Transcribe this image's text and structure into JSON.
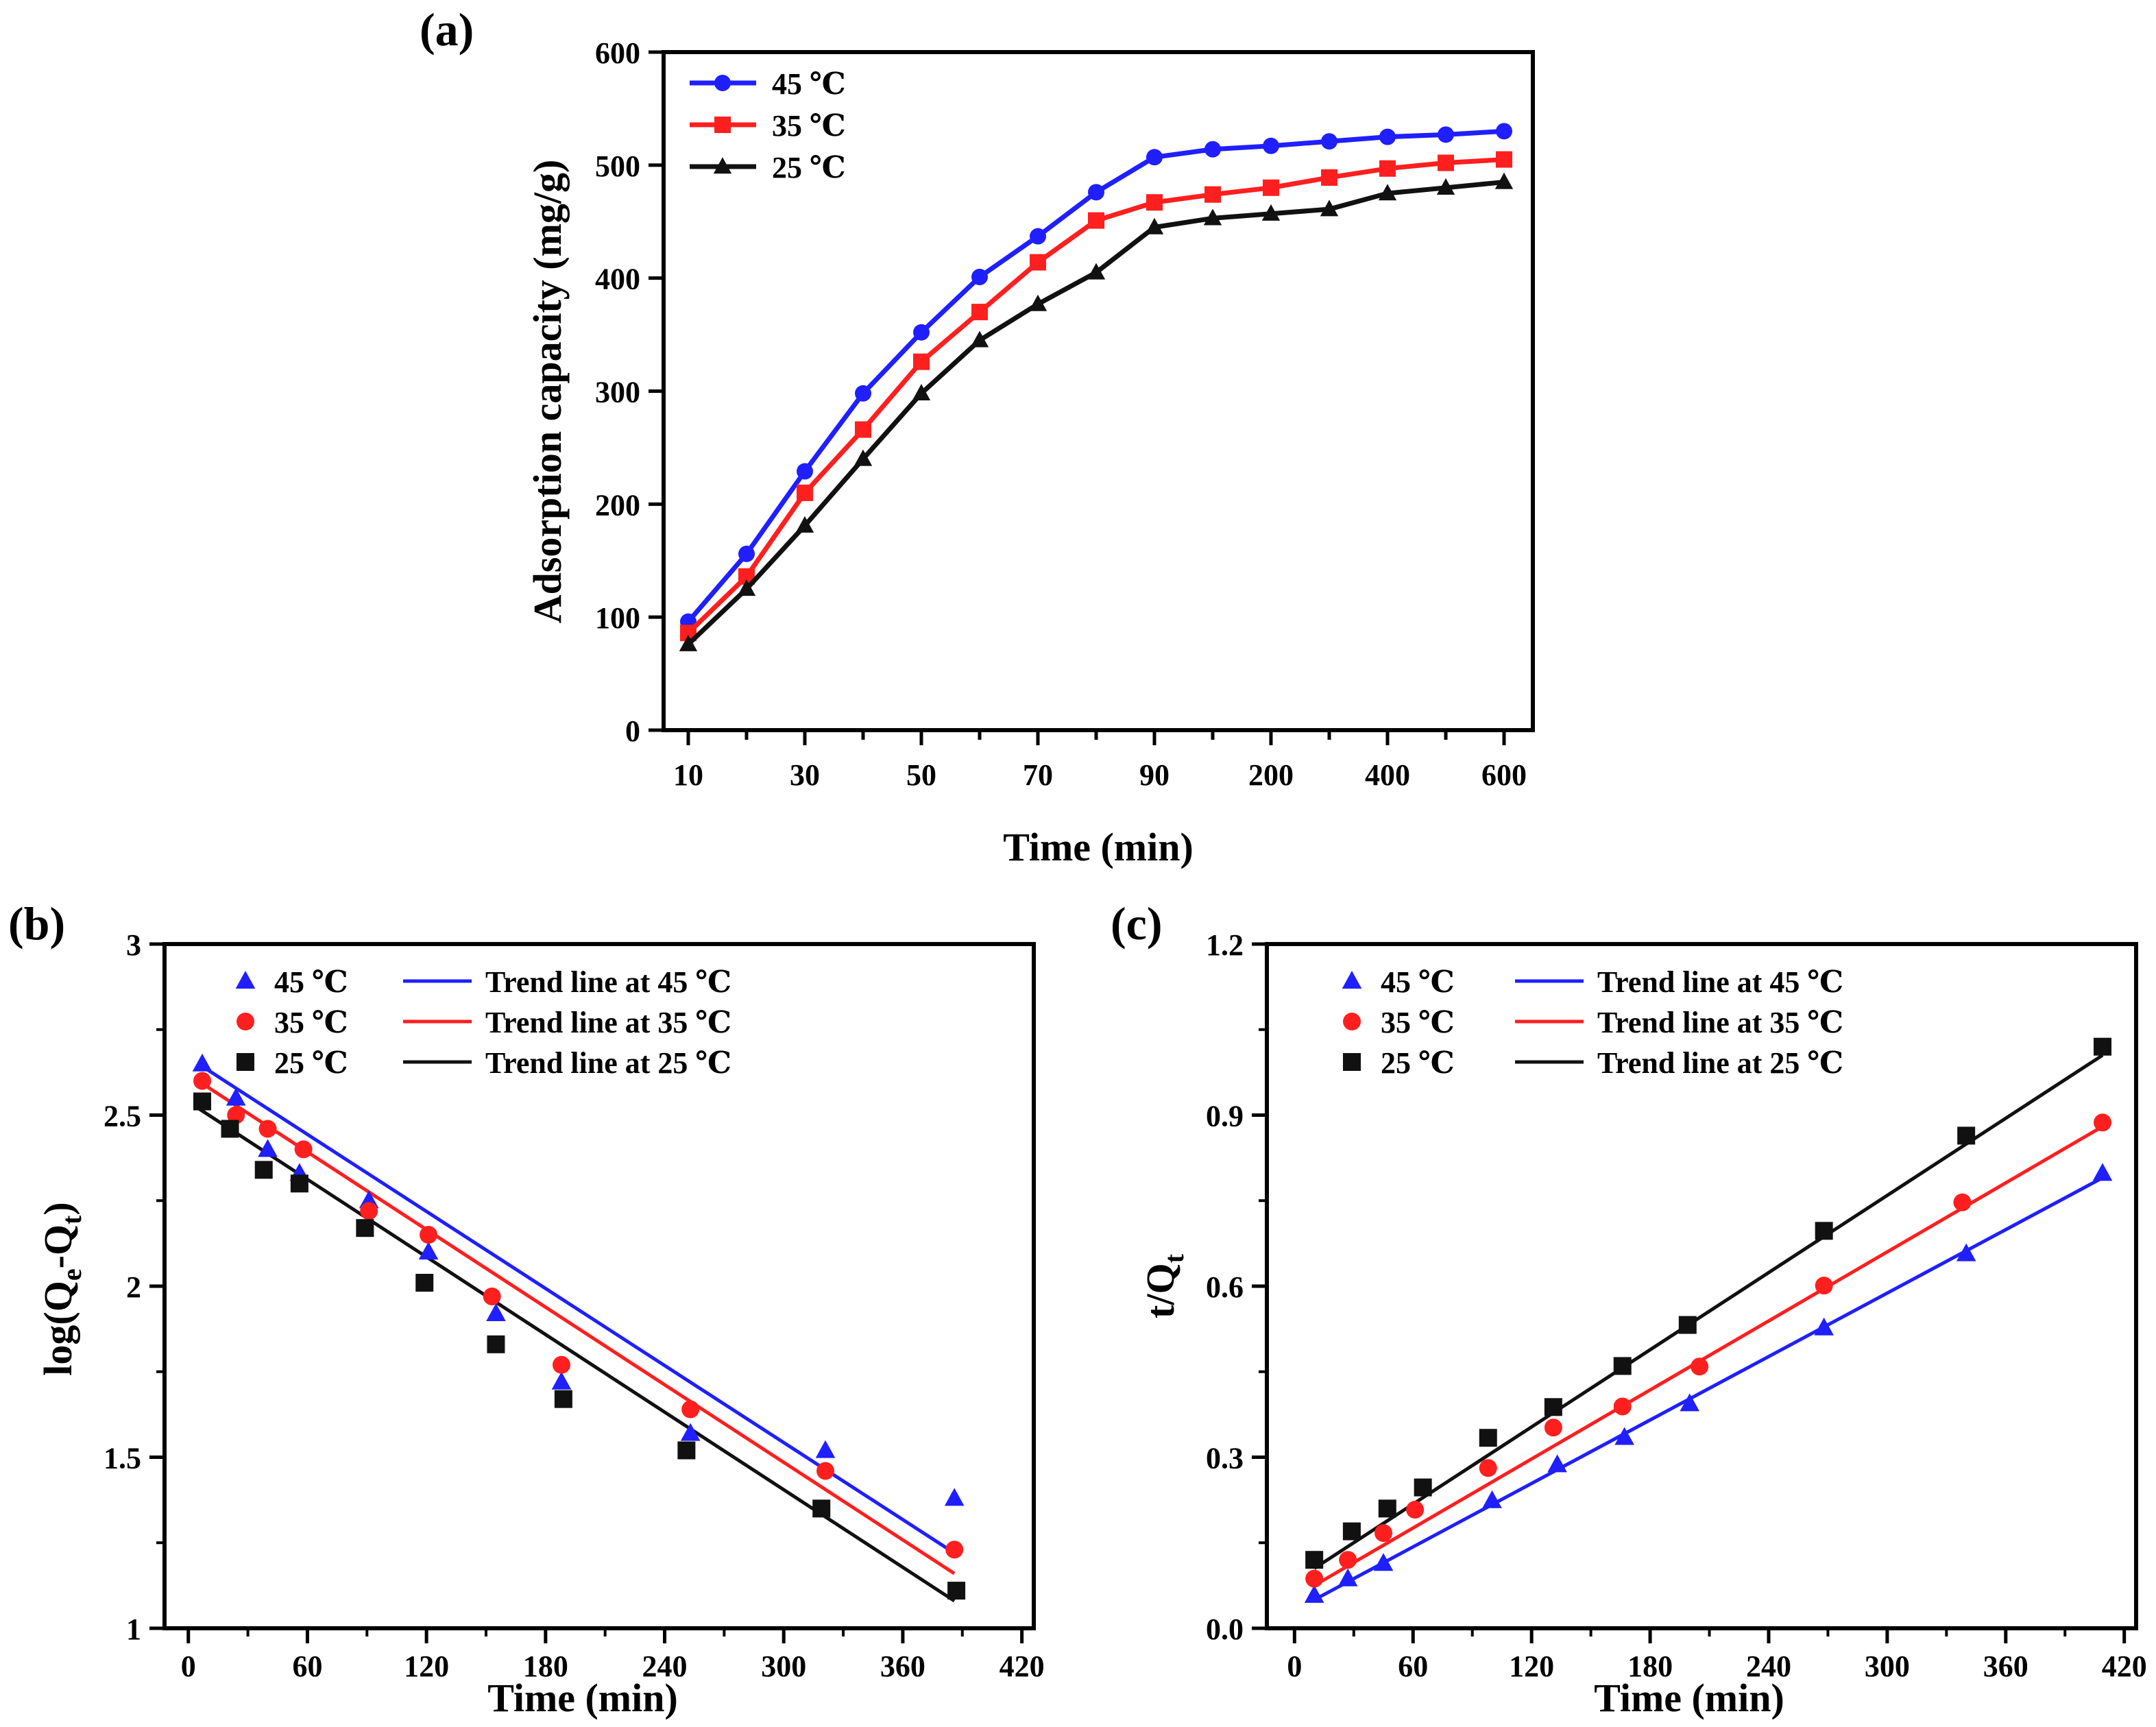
{
  "chart_data": [
    {
      "panel_label": "(a)",
      "type": "line",
      "xlabel": "Time (min)",
      "ylabel": "Adsorption capacity (mg/g)",
      "x_scale": "categorical",
      "categories": [
        "10",
        "20",
        "30",
        "40",
        "50",
        "60",
        "70",
        "80",
        "90",
        "100",
        "200",
        "300",
        "400",
        "500",
        "600"
      ],
      "xtick_labels": [
        "10",
        "30",
        "50",
        "70",
        "90",
        "200",
        "400",
        "600"
      ],
      "ylim": [
        0,
        600
      ],
      "yticks": [
        "0",
        "100",
        "200",
        "300",
        "400",
        "500",
        "600"
      ],
      "legend_position": "top-left",
      "series": [
        {
          "name": "45 ℃",
          "color": "#1f1fff",
          "marker": "circle",
          "values": [
            96,
            156,
            229,
            298,
            352,
            401,
            437,
            476,
            507,
            514,
            517,
            521,
            525,
            527,
            530
          ]
        },
        {
          "name": "35 ℃",
          "color": "#ff1f1f",
          "marker": "square",
          "values": [
            86,
            136,
            210,
            266,
            326,
            370,
            414,
            451,
            467,
            474,
            480,
            489,
            497,
            502,
            505
          ]
        },
        {
          "name": "25 ℃",
          "color": "#111111",
          "marker": "triangle",
          "values": [
            76,
            125,
            181,
            240,
            298,
            345,
            377,
            405,
            445,
            453,
            457,
            461,
            475,
            480,
            485
          ]
        }
      ]
    },
    {
      "panel_label": "(b)",
      "type": "scatter",
      "xlabel": "Time (min)",
      "ylabel_main": "log(Q",
      "ylabel_sub1": "e",
      "ylabel_mid": "-Q",
      "ylabel_sub2": "t",
      "ylabel_end": ")",
      "xlim": [
        -12,
        426
      ],
      "ylim": [
        1,
        3
      ],
      "xticks": [
        "0",
        "60",
        "120",
        "180",
        "240",
        "300",
        "360",
        "420"
      ],
      "yticks": [
        "1",
        "1.5",
        "2",
        "2.5",
        "3"
      ],
      "legend_position": "top",
      "series": [
        {
          "name": "45 ℃",
          "color": "#1f1fff",
          "marker": "triangle",
          "x": [
            7,
            24,
            40,
            56,
            91,
            121,
            155,
            188,
            253,
            321,
            386
          ],
          "y": [
            2.65,
            2.55,
            2.4,
            2.33,
            2.25,
            2.1,
            1.92,
            1.72,
            1.57,
            1.52,
            1.38
          ]
        },
        {
          "name": "35 ℃",
          "color": "#ff1f1f",
          "marker": "circle",
          "x": [
            7,
            24,
            40,
            58,
            91,
            121,
            153,
            188,
            253,
            321,
            386
          ],
          "y": [
            2.6,
            2.5,
            2.46,
            2.4,
            2.22,
            2.15,
            1.97,
            1.77,
            1.64,
            1.46,
            1.23
          ]
        },
        {
          "name": "25 ℃",
          "color": "#111111",
          "marker": "square",
          "x": [
            7,
            21,
            38,
            56,
            89,
            119,
            155,
            189,
            251,
            319,
            387
          ],
          "y": [
            2.54,
            2.46,
            2.34,
            2.3,
            2.17,
            2.01,
            1.83,
            1.67,
            1.52,
            1.35,
            1.11
          ]
        }
      ],
      "trend_lines": [
        {
          "name": "Trend line at 45 ℃",
          "color": "#1f1fff",
          "x": [
            5,
            386
          ],
          "y": [
            2.65,
            1.22
          ]
        },
        {
          "name": "Trend line at 35 ℃",
          "color": "#ff1f1f",
          "x": [
            5,
            386
          ],
          "y": [
            2.6,
            1.16
          ]
        },
        {
          "name": "Trend line at 25 ℃",
          "color": "#111111",
          "x": [
            5,
            386
          ],
          "y": [
            2.52,
            1.08
          ]
        }
      ]
    },
    {
      "panel_label": "(c)",
      "type": "scatter",
      "xlabel": "Time (min)",
      "ylabel_main": "t/Q",
      "ylabel_sub": "t",
      "xlim": [
        -14,
        426
      ],
      "ylim": [
        0,
        1.2
      ],
      "xticks": [
        "0",
        "60",
        "120",
        "180",
        "240",
        "300",
        "360",
        "420"
      ],
      "yticks": [
        "0.0",
        "0.3",
        "0.6",
        "0.9",
        "1.2"
      ],
      "legend_position": "top",
      "series": [
        {
          "name": "45 ℃",
          "color": "#1f1fff",
          "marker": "triangle",
          "x": [
            10,
            27,
            45,
            100,
            133,
            167,
            200,
            268,
            340,
            409
          ],
          "y": [
            0.058,
            0.087,
            0.114,
            0.224,
            0.287,
            0.335,
            0.394,
            0.527,
            0.657,
            0.798
          ]
        },
        {
          "name": "35 ℃",
          "color": "#ff1f1f",
          "marker": "circle",
          "x": [
            10,
            27,
            45,
            61,
            98,
            131,
            166,
            205,
            268,
            338,
            409
          ],
          "y": [
            0.087,
            0.12,
            0.167,
            0.208,
            0.281,
            0.352,
            0.389,
            0.459,
            0.601,
            0.747,
            0.887
          ]
        },
        {
          "name": "25 ℃",
          "color": "#111111",
          "marker": "square",
          "x": [
            10,
            29,
            47,
            65,
            98,
            131,
            166,
            199,
            268,
            340,
            409
          ],
          "y": [
            0.12,
            0.17,
            0.21,
            0.247,
            0.334,
            0.388,
            0.46,
            0.532,
            0.697,
            0.864,
            1.02
          ]
        }
      ],
      "trend_lines": [
        {
          "name": "Trend line at 45 ℃",
          "color": "#1f1fff",
          "x": [
            10,
            409
          ],
          "y": [
            0.05,
            0.79
          ]
        },
        {
          "name": "Trend line at 35 ℃",
          "color": "#ff1f1f",
          "x": [
            10,
            409
          ],
          "y": [
            0.075,
            0.88
          ]
        },
        {
          "name": "Trend line at 25 ℃",
          "color": "#111111",
          "x": [
            10,
            409
          ],
          "y": [
            0.105,
            1.005
          ]
        }
      ]
    }
  ]
}
